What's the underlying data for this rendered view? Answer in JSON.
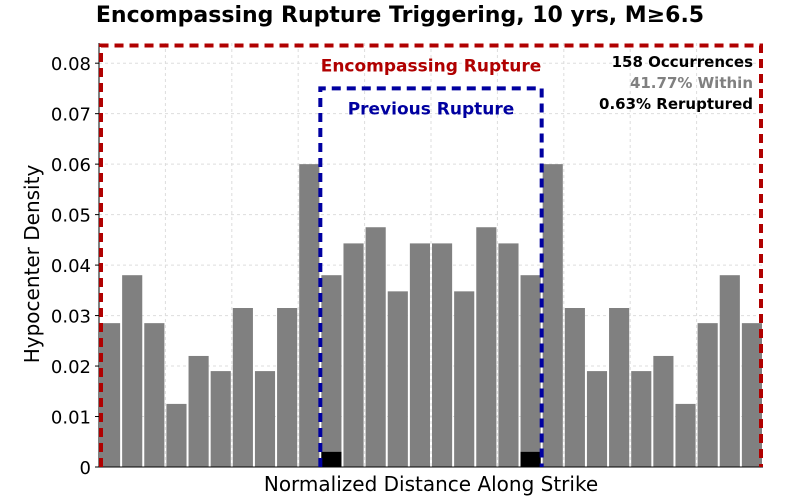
{
  "chart_data": {
    "type": "bar",
    "title": "Encompassing Rupture Triggering, 10 yrs, M≥6.5",
    "xlabel": "Normalized Distance Along Strike",
    "ylabel": "Hypocenter Density",
    "ylim": [
      0,
      0.084
    ],
    "yticks": [
      0,
      0.01,
      0.02,
      0.03,
      0.04,
      0.05,
      0.06,
      0.07,
      0.08
    ],
    "ytick_labels": [
      "0",
      "0.01",
      "0.02",
      "0.03",
      "0.04",
      "0.05",
      "0.06",
      "0.07",
      "0.08"
    ],
    "grid": true,
    "bar_color": "#808080",
    "series": [
      {
        "values": [
          0.0285,
          0.038,
          0.0285,
          0.0125,
          0.022,
          0.019,
          0.0315,
          0.019,
          0.0315,
          0.06,
          0.038,
          0.0443,
          0.0475,
          0.0348,
          0.0443,
          0.0443,
          0.0348,
          0.0475,
          0.0443,
          0.038,
          0.06,
          0.0315,
          0.019,
          0.0315,
          0.019,
          0.022,
          0.0125,
          0.0285,
          0.038,
          0.0285
        ]
      },
      {
        "color": "#000000",
        "values": [
          0,
          0,
          0,
          0,
          0,
          0,
          0,
          0,
          0,
          0,
          0.003,
          0,
          0,
          0,
          0,
          0,
          0,
          0,
          0,
          0.003,
          0,
          0,
          0,
          0,
          0,
          0,
          0,
          0,
          0,
          0
        ]
      }
    ],
    "regions": [
      {
        "label": "Encompassing Rupture",
        "color": "#b00000",
        "x_range": [
          0,
          30
        ],
        "top": 0.0835,
        "label_y": 0.0795
      },
      {
        "label": "Previous Rupture",
        "color": "#0000a0",
        "x_range": [
          10,
          20
        ],
        "top": 0.075,
        "label_y": 0.071
      }
    ],
    "annotations": [
      {
        "text": "158 Occurrences",
        "color": "#000000"
      },
      {
        "text": "41.77% Within",
        "color": "#808080"
      },
      {
        "text": "0.63% Reruptured",
        "color": "#000000"
      }
    ]
  }
}
